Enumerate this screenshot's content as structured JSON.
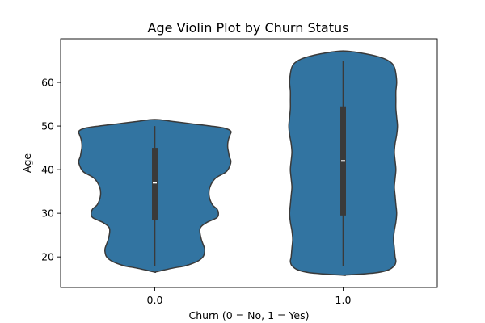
{
  "chart_data": {
    "type": "violin",
    "title": "Age Violin Plot by Churn Status",
    "xlabel": "Churn (0 = No, 1 = Yes)",
    "ylabel": "Age",
    "categories": [
      "0.0",
      "1.0"
    ],
    "ylim": [
      13,
      70
    ],
    "yticks": [
      20,
      30,
      40,
      50,
      60
    ],
    "grid": false,
    "fill_color": "#3274a1",
    "edge_color": "#3a3a3a",
    "violins": [
      {
        "category": "0.0",
        "min": 18,
        "q1": 28.5,
        "median": 37,
        "q3": 45,
        "max": 50,
        "top": 51.5,
        "bottom": 16.5,
        "density": [
          [
            16.5,
            0.0
          ],
          [
            17.0,
            0.12
          ],
          [
            17.5,
            0.25
          ],
          [
            18.0,
            0.4
          ],
          [
            19.0,
            0.55
          ],
          [
            20.0,
            0.62
          ],
          [
            21.0,
            0.64
          ],
          [
            22.0,
            0.64
          ],
          [
            24.0,
            0.6
          ],
          [
            26.0,
            0.58
          ],
          [
            27.0,
            0.6
          ],
          [
            28.0,
            0.68
          ],
          [
            29.0,
            0.8
          ],
          [
            30.0,
            0.82
          ],
          [
            31.0,
            0.8
          ],
          [
            32.0,
            0.74
          ],
          [
            34.0,
            0.7
          ],
          [
            36.0,
            0.71
          ],
          [
            38.0,
            0.78
          ],
          [
            39.5,
            0.92
          ],
          [
            41.0,
            0.97
          ],
          [
            42.0,
            0.98
          ],
          [
            43.0,
            0.96
          ],
          [
            44.0,
            0.95
          ],
          [
            45.0,
            0.94
          ],
          [
            46.0,
            0.94
          ],
          [
            47.0,
            0.95
          ],
          [
            48.0,
            0.97
          ],
          [
            48.8,
            0.98
          ],
          [
            49.5,
            0.9
          ],
          [
            50.0,
            0.72
          ],
          [
            50.5,
            0.48
          ],
          [
            51.0,
            0.25
          ],
          [
            51.5,
            0.0
          ]
        ]
      },
      {
        "category": "1.0",
        "min": 18,
        "q1": 29.5,
        "median": 42,
        "q3": 54.5,
        "max": 65,
        "top": 67.2,
        "bottom": 15.8,
        "density": [
          [
            15.8,
            0.0
          ],
          [
            16.3,
            0.4
          ],
          [
            17.0,
            0.58
          ],
          [
            18.0,
            0.66
          ],
          [
            19.0,
            0.68
          ],
          [
            20.0,
            0.67
          ],
          [
            22.0,
            0.66
          ],
          [
            24.0,
            0.65
          ],
          [
            26.0,
            0.66
          ],
          [
            28.0,
            0.68
          ],
          [
            30.0,
            0.69
          ],
          [
            32.0,
            0.68
          ],
          [
            34.0,
            0.67
          ],
          [
            36.0,
            0.66
          ],
          [
            38.0,
            0.67
          ],
          [
            40.0,
            0.68
          ],
          [
            42.0,
            0.67
          ],
          [
            44.0,
            0.66
          ],
          [
            46.0,
            0.67
          ],
          [
            48.0,
            0.69
          ],
          [
            50.0,
            0.7
          ],
          [
            52.0,
            0.69
          ],
          [
            54.0,
            0.68
          ],
          [
            56.0,
            0.68
          ],
          [
            58.0,
            0.68
          ],
          [
            60.0,
            0.69
          ],
          [
            62.0,
            0.68
          ],
          [
            63.5,
            0.66
          ],
          [
            64.5,
            0.62
          ],
          [
            65.5,
            0.52
          ],
          [
            66.5,
            0.3
          ],
          [
            67.2,
            0.0
          ]
        ]
      }
    ]
  }
}
